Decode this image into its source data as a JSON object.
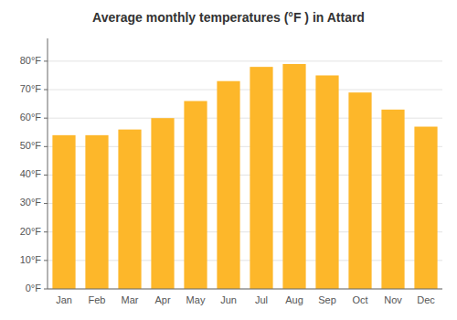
{
  "chart_data": {
    "type": "bar",
    "title": "Average monthly temperatures (°F ) in Attard",
    "categories": [
      "Jan",
      "Feb",
      "Mar",
      "Apr",
      "May",
      "Jun",
      "Jul",
      "Aug",
      "Sep",
      "Oct",
      "Nov",
      "Dec"
    ],
    "values": [
      54,
      54,
      56,
      60,
      66,
      73,
      78,
      79,
      75,
      69,
      63,
      57
    ],
    "color": "#FDB72A",
    "ylim": [
      0,
      88
    ],
    "yticks": [
      {
        "value": 0,
        "label": "0°F"
      },
      {
        "value": 10,
        "label": "10°F"
      },
      {
        "value": 20,
        "label": "20°F"
      },
      {
        "value": 30,
        "label": "30°F"
      },
      {
        "value": 40,
        "label": "40°F"
      },
      {
        "value": 50,
        "label": "50°F"
      },
      {
        "value": 60,
        "label": "60°F"
      },
      {
        "value": 70,
        "label": "70°F"
      },
      {
        "value": 80,
        "label": "80°F"
      }
    ],
    "grid": true
  }
}
